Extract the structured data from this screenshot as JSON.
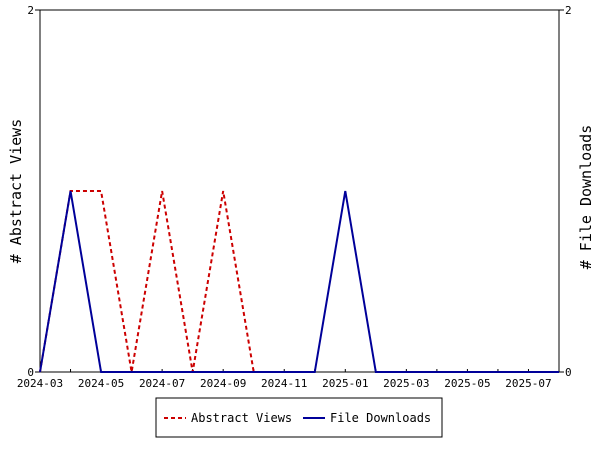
{
  "chart_data": {
    "type": "line",
    "xlabel": "",
    "ylabel_left": "# Abstract Views",
    "ylabel_right": "# File Downloads",
    "ylim_left": [
      0,
      2
    ],
    "ylim_right": [
      0,
      2
    ],
    "y_ticks_left": [
      "0",
      "2"
    ],
    "y_ticks_right": [
      "0",
      "2"
    ],
    "x_ticks": [
      "2024-03",
      "2024-05",
      "2024-07",
      "2024-09",
      "2024-11",
      "2025-01",
      "2025-03",
      "2025-05",
      "2025-07"
    ],
    "x": [
      "2024-03",
      "2024-04",
      "2024-05",
      "2024-06",
      "2024-07",
      "2024-08",
      "2024-09",
      "2024-10",
      "2024-11",
      "2024-12",
      "2025-01",
      "2025-02",
      "2025-03",
      "2025-04",
      "2025-05",
      "2025-06",
      "2025-07",
      "2025-08"
    ],
    "series": [
      {
        "name": "Abstract Views",
        "axis": "left",
        "color": "#cc0000",
        "dash": "dashed",
        "values": [
          0,
          1,
          1,
          0,
          1,
          0,
          1,
          0,
          null,
          null,
          null,
          null,
          null,
          null,
          null,
          null,
          null,
          null
        ]
      },
      {
        "name": "File Downloads",
        "axis": "right",
        "color": "#000099",
        "dash": "solid",
        "values": [
          0,
          1,
          0,
          0,
          0,
          0,
          0,
          0,
          0,
          0,
          1,
          0,
          0,
          0,
          0,
          0,
          0,
          0
        ]
      }
    ],
    "legend_position": "bottom",
    "grid": false
  }
}
